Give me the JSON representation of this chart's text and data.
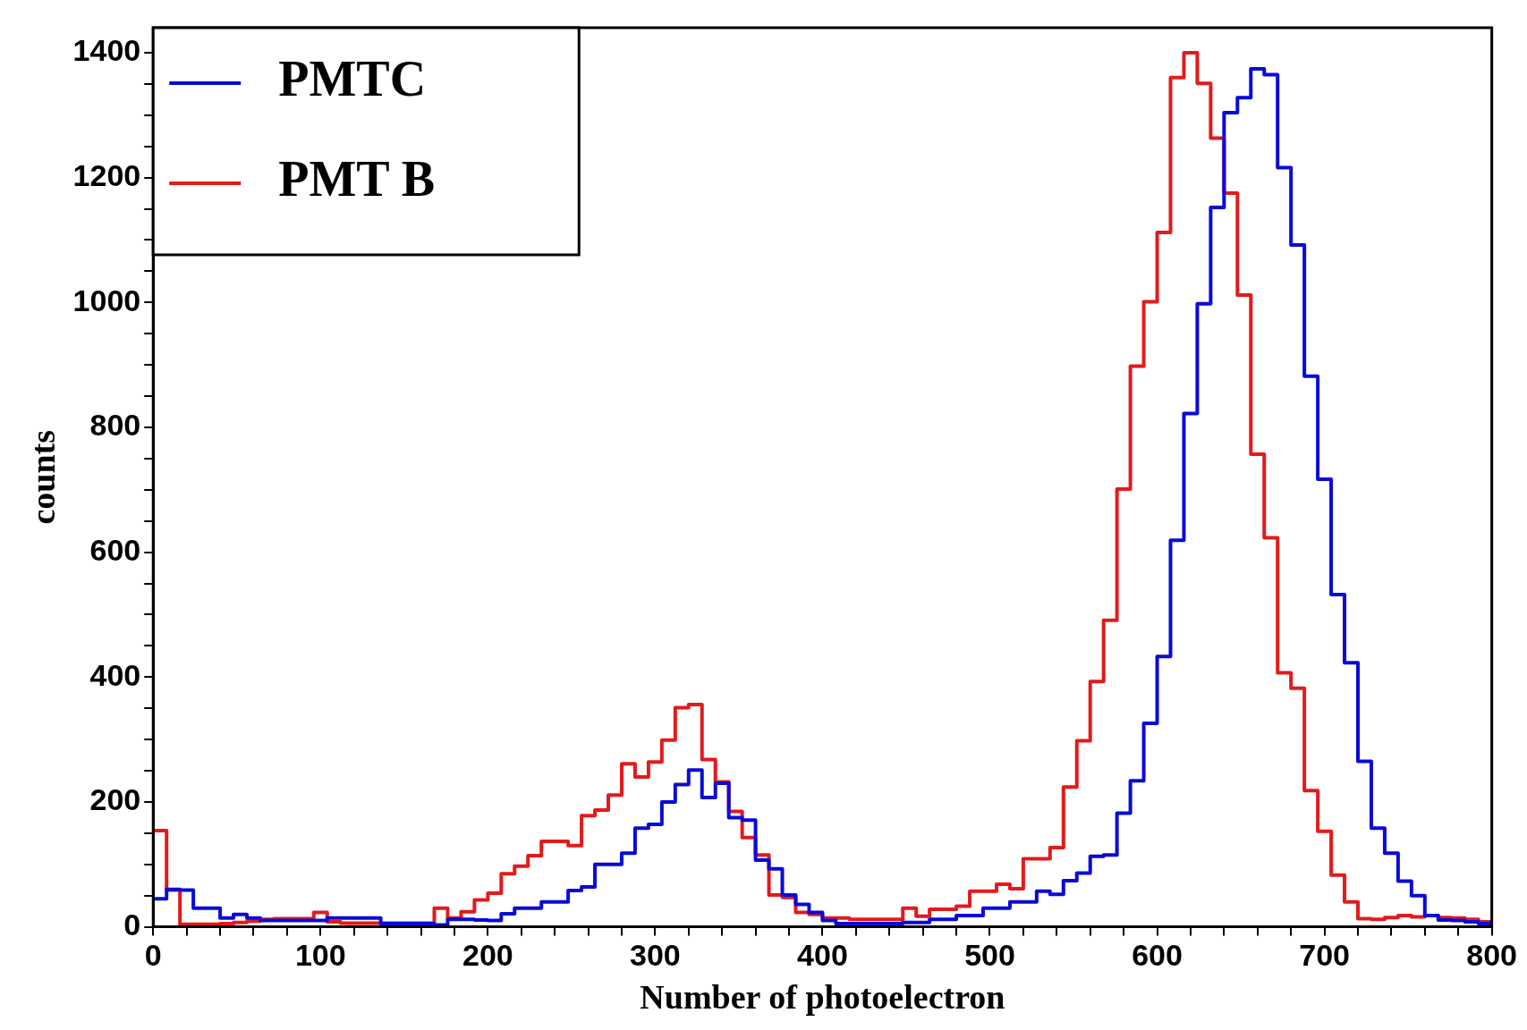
{
  "chart_data": {
    "type": "histogram",
    "xlabel": "Number of photoelectron",
    "ylabel": "counts",
    "bins": [
      0,
      8,
      16,
      24,
      32,
      40,
      48,
      56,
      64,
      72,
      80,
      88,
      96,
      104,
      112,
      120,
      128,
      136,
      144,
      152,
      160,
      168,
      176,
      184,
      192,
      200,
      208,
      216,
      224,
      232,
      240,
      248,
      256,
      264,
      272,
      280,
      288,
      296,
      304,
      312,
      320,
      328,
      336,
      344,
      352,
      360,
      368,
      376,
      384,
      392,
      400,
      408,
      416,
      424,
      432,
      440,
      448,
      456,
      464,
      472,
      480,
      488,
      496,
      504,
      512,
      520,
      528,
      536,
      544,
      552,
      560,
      568,
      576,
      584,
      592,
      600,
      608,
      616,
      624,
      632,
      640,
      648,
      656,
      664,
      672,
      680,
      688,
      696,
      704,
      712,
      720,
      728,
      736,
      744,
      752,
      760,
      768,
      776,
      784,
      792,
      800
    ],
    "series": [
      {
        "name": "PMTC",
        "color": "#0a0ad8",
        "values": [
          45,
          60,
          59,
          30,
          30,
          14,
          20,
          14,
          10,
          10,
          10,
          10,
          10,
          14,
          14,
          14,
          14,
          5,
          5,
          5,
          5,
          3,
          12,
          12,
          11,
          10,
          21,
          30,
          30,
          40,
          40,
          58,
          64,
          100,
          100,
          118,
          158,
          164,
          200,
          228,
          251,
          207,
          230,
          175,
          171,
          107,
          93,
          51,
          36,
          23,
          10,
          5,
          5,
          5,
          5,
          5,
          7,
          7,
          12,
          12,
          18,
          18,
          30,
          30,
          40,
          40,
          57,
          52,
          74,
          86,
          113,
          115,
          182,
          234,
          326,
          433,
          619,
          822,
          998,
          1152,
          1304,
          1328,
          1374,
          1365,
          1216,
          1092,
          882,
          717,
          532,
          423,
          265,
          158,
          118,
          73,
          50,
          18,
          11,
          10,
          8,
          5
        ]
      },
      {
        "name": "PMT B",
        "color": "#e31a1c",
        "values": [
          154,
          59,
          4,
          4,
          4,
          5,
          7,
          9,
          12,
          13,
          13,
          13,
          23,
          8,
          6,
          6,
          6,
          6,
          6,
          6,
          6,
          30,
          14,
          24,
          43,
          54,
          85,
          97,
          114,
          137,
          137,
          130,
          178,
          187,
          211,
          261,
          240,
          264,
          299,
          351,
          356,
          268,
          232,
          185,
          143,
          115,
          51,
          47,
          23,
          20,
          14,
          14,
          12,
          12,
          12,
          12,
          30,
          17,
          28,
          28,
          33,
          57,
          57,
          68,
          61,
          109,
          109,
          127,
          224,
          298,
          393,
          491,
          701,
          898,
          1001,
          1112,
          1360,
          1400,
          1351,
          1263,
          1175,
          1012,
          757,
          623,
          407,
          382,
          218,
          153,
          83,
          40,
          13,
          12,
          15,
          18,
          16,
          18,
          15,
          14,
          12,
          8
        ]
      }
    ],
    "xlim": [
      0,
      800
    ],
    "ylim": [
      0,
      1440
    ],
    "xticks": [
      0,
      {
        "value": 20,
        "label": null
      },
      {
        "value": 40,
        "label": null
      },
      {
        "value": 60,
        "label": null
      },
      {
        "value": 80,
        "label": null
      },
      100,
      {
        "value": 120,
        "label": null
      },
      {
        "value": 140,
        "label": null
      },
      {
        "value": 160,
        "label": null
      },
      {
        "value": 180,
        "label": null
      },
      200,
      {
        "value": 220,
        "label": null
      },
      {
        "value": 240,
        "label": null
      },
      {
        "value": 260,
        "label": null
      },
      {
        "value": 280,
        "label": null
      },
      300,
      {
        "value": 320,
        "label": null
      },
      {
        "value": 340,
        "label": null
      },
      {
        "value": 360,
        "label": null
      },
      {
        "value": 380,
        "label": null
      },
      400,
      {
        "value": 420,
        "label": null
      },
      {
        "value": 440,
        "label": null
      },
      {
        "value": 460,
        "label": null
      },
      {
        "value": 480,
        "label": null
      },
      500,
      {
        "value": 520,
        "label": null
      },
      {
        "value": 540,
        "label": null
      },
      {
        "value": 560,
        "label": null
      },
      {
        "value": 580,
        "label": null
      },
      600,
      {
        "value": 620,
        "label": null
      },
      {
        "value": 640,
        "label": null
      },
      {
        "value": 660,
        "label": null
      },
      {
        "value": 680,
        "label": null
      },
      700,
      {
        "value": 720,
        "label": null
      },
      {
        "value": 740,
        "label": null
      },
      {
        "value": 760,
        "label": null
      },
      {
        "value": 780,
        "label": null
      },
      800
    ],
    "yticks": [
      0,
      {
        "value": 50,
        "label": null
      },
      {
        "value": 100,
        "label": null
      },
      {
        "value": 150,
        "label": null
      },
      200,
      {
        "value": 250,
        "label": null
      },
      {
        "value": 300,
        "label": null
      },
      {
        "value": 350,
        "label": null
      },
      400,
      {
        "value": 450,
        "label": null
      },
      {
        "value": 500,
        "label": null
      },
      {
        "value": 550,
        "label": null
      },
      600,
      {
        "value": 650,
        "label": null
      },
      {
        "value": 700,
        "label": null
      },
      {
        "value": 750,
        "label": null
      },
      800,
      {
        "value": 850,
        "label": null
      },
      {
        "value": 900,
        "label": null
      },
      {
        "value": 950,
        "label": null
      },
      1000,
      {
        "value": 1050,
        "label": null
      },
      {
        "value": 1100,
        "label": null
      },
      {
        "value": 1150,
        "label": null
      },
      1200,
      {
        "value": 1250,
        "label": null
      },
      {
        "value": 1300,
        "label": null
      },
      {
        "value": 1350,
        "label": null
      },
      1400
    ],
    "legend": "top left"
  }
}
